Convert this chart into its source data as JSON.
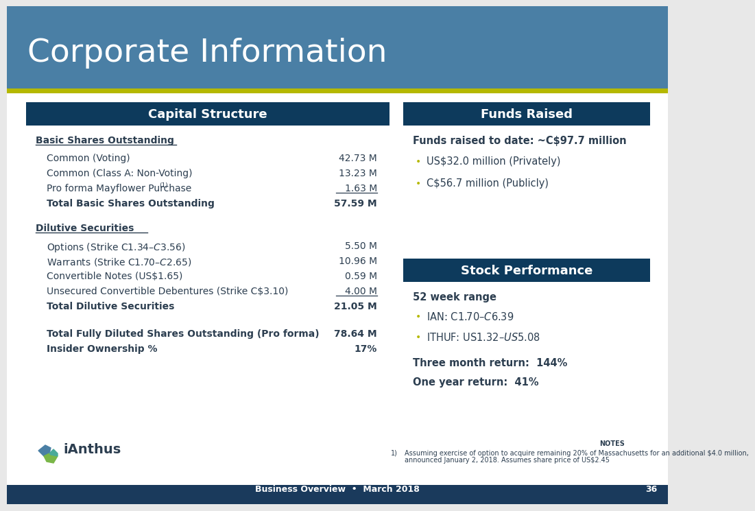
{
  "title": "Corporate Information",
  "header_bg": "#4a7fa5",
  "header_text_color": "#ffffff",
  "accent_bar_color": "#b5b800",
  "footer_bg": "#1a3a5c",
  "footer_text_color": "#ffffff",
  "main_bg": "#e8e8e8",
  "content_bg": "#ffffff",
  "dark_blue_header": "#0d3a5c",
  "text_dark": "#2c3e50",
  "bullet_color": "#b5b800",
  "capital_structure_header": "Capital Structure",
  "basic_shares_label": "Basic Shares Outstanding",
  "basic_rows": [
    [
      "Common (Voting)",
      "42.73 M"
    ],
    [
      "Common (Class A: Non-Voting)",
      "13.23 M"
    ],
    [
      "Pro forma Mayflower Purchase(1)",
      "1.63 M"
    ]
  ],
  "total_basic": [
    "Total Basic Shares Outstanding",
    "57.59 M"
  ],
  "dilutive_label": "Dilutive Securities",
  "dilutive_rows": [
    [
      "Options (Strike C$1.34 – C$3.56)",
      "5.50 M"
    ],
    [
      "Warrants (Strike C$1.70 – C$2.65)",
      "10.96 M"
    ],
    [
      "Convertible Notes (US$1.65)",
      "0.59 M"
    ],
    [
      "Unsecured Convertible Debentures (Strike C$3.10)",
      "4.00 M"
    ]
  ],
  "total_dilutive": [
    "Total Dilutive Securities",
    "21.05 M"
  ],
  "total_fully_diluted": [
    "Total Fully Diluted Shares Outstanding (Pro forma)",
    "78.64 M"
  ],
  "insider_ownership": [
    "Insider Ownership %",
    "17%"
  ],
  "funds_raised_header": "Funds Raised",
  "funds_raised_subtitle": "Funds raised to date: ~C$97.7 million",
  "funds_bullets": [
    "US$32.0 million (Privately)",
    "C$56.7 million (Publicly)"
  ],
  "stock_performance_header": "Stock Performance",
  "week_range_label": "52 week range",
  "stock_bullets": [
    "IAN: C$1.70 – C$6.39",
    "ITHUF: US$1.32 – US$5.08"
  ],
  "three_month": "Three month return:  144%",
  "one_year": "One year return:  41%",
  "footer_left": "Business Overview",
  "footer_sep": "•",
  "footer_right": "March 2018",
  "footer_number": "36",
  "notes_label": "NOTES",
  "notes_num": "1)",
  "notes_text": "Assuming exercise of option to acquire remaining 20% of Massachusetts for an additional $4.0 million,",
  "notes_text2": "announced January 2, 2018. Assumes share price of US$2.45",
  "logo_text": "iAnthus",
  "logo_blue": "#4a7fa5",
  "logo_green": "#7ab648",
  "logo_teal": "#4aaa99"
}
